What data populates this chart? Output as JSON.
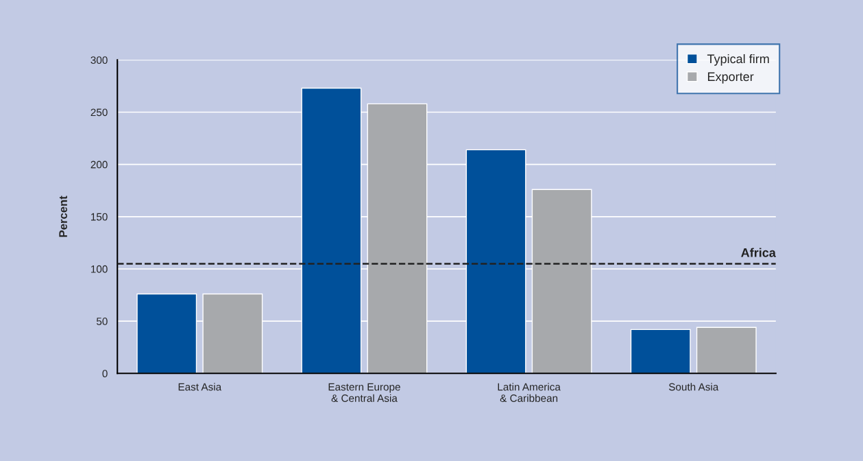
{
  "chart_data": {
    "type": "bar",
    "ylabel": "Percent",
    "categories": [
      "East Asia",
      "Eastern Europe\n& Central Asia",
      "Latin America\n& Caribbean",
      "South Asia"
    ],
    "series": [
      {
        "name": "Typical firm",
        "color": "#00509a",
        "values": [
          76,
          273,
          214,
          42
        ]
      },
      {
        "name": "Exporter",
        "color": "#a7a9ac",
        "values": [
          76,
          258,
          176,
          44
        ]
      }
    ],
    "ylim": [
      0,
      300
    ],
    "yticks": [
      0,
      50,
      100,
      150,
      200,
      250,
      300
    ],
    "ref_lines": [
      {
        "axis": "y",
        "value": 105,
        "label": "Africa",
        "color": "#222222",
        "line_style": "dashed"
      }
    ],
    "grid": "y",
    "legend": "top right"
  }
}
